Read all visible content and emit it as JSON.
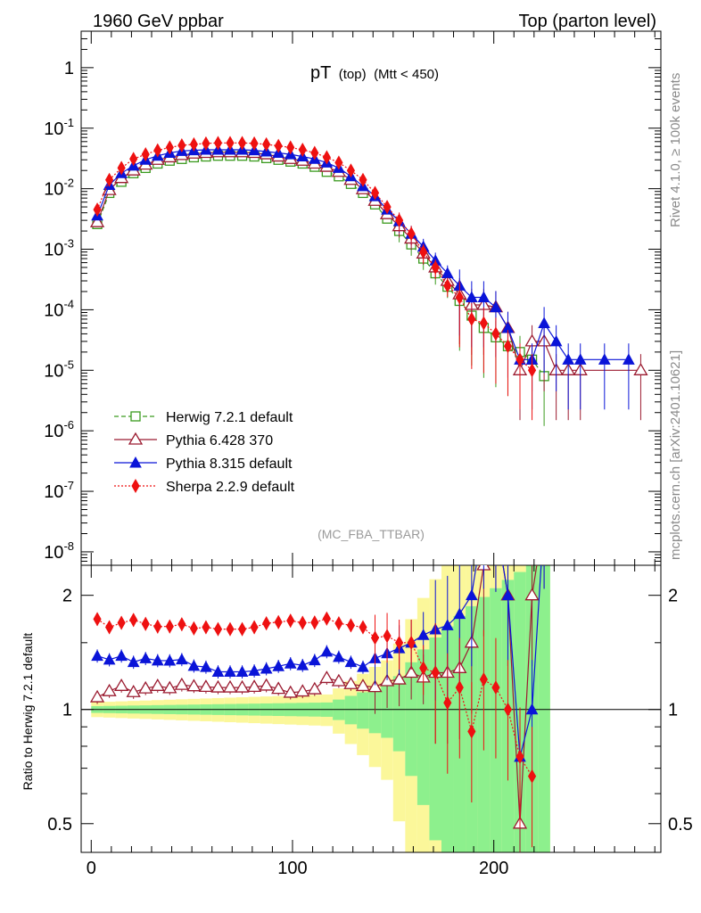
{
  "header": {
    "left": "1960 GeV ppbar",
    "right": "Top (parton level)"
  },
  "side_texts": {
    "rivet": "Rivet 4.1.0, ≥ 100k events",
    "mcplots": "mcplots.cern.ch [arXiv:2401.10621]"
  },
  "watermark": "(MC_FBA_TTBAR)",
  "main_title": {
    "pt": "pT",
    "top": "(top)",
    "cut": "(Mtt < 450)"
  },
  "ratio_ylabel": "Ratio to Herwig 7.2.1 default",
  "colors": {
    "herwig": "#3a9a1e",
    "pythia6": "#9b1b30",
    "pythia8": "#0a14d8",
    "sherpa": "#ee1111",
    "band_inner": "#8df08d",
    "band_outer": "#fbf79a"
  },
  "chart_data": {
    "type": "line",
    "x_axis": {
      "range": [
        -5,
        283
      ],
      "ticks": [
        0,
        100,
        200
      ],
      "labels": [
        "0",
        "100",
        "200"
      ]
    },
    "main_y_axis": {
      "scale": "log",
      "range": [
        6e-09,
        4.0
      ],
      "ticks": [
        1,
        0.1,
        0.01,
        0.001,
        0.0001,
        1e-05,
        1e-06,
        1e-07,
        1e-08
      ],
      "labels": [
        "1",
        "10^-1",
        "10^-2",
        "10^-3",
        "10^-4",
        "10^-5",
        "10^-6",
        "10^-7",
        "10^-8"
      ]
    },
    "ratio_y_axis": {
      "scale": "log",
      "range": [
        0.42,
        2.4
      ],
      "ticks": [
        0.5,
        1,
        2
      ],
      "labels": [
        "0.5",
        "1",
        "2"
      ],
      "reference": 1
    },
    "legend": [
      {
        "key": "herwig",
        "label": "Herwig 7.2.1 default"
      },
      {
        "key": "pythia6",
        "label": "Pythia 6.428 370"
      },
      {
        "key": "pythia8",
        "label": "Pythia 8.315 default"
      },
      {
        "key": "sherpa",
        "label": "Sherpa 2.2.9 default"
      }
    ],
    "series": [
      {
        "key": "herwig",
        "name": "Herwig 7.2.1 default",
        "x": [
          3,
          9,
          15,
          21,
          27,
          33,
          39,
          45,
          51,
          57,
          63,
          69,
          75,
          81,
          87,
          93,
          99,
          105,
          111,
          117,
          123,
          129,
          135,
          141,
          147,
          153,
          159,
          165,
          171,
          177,
          183,
          189,
          195,
          201,
          207,
          213,
          219,
          225
        ],
        "y": [
          0.0026,
          0.0085,
          0.013,
          0.018,
          0.022,
          0.026,
          0.029,
          0.031,
          0.033,
          0.034,
          0.035,
          0.035,
          0.035,
          0.034,
          0.032,
          0.03,
          0.028,
          0.026,
          0.023,
          0.019,
          0.016,
          0.012,
          0.0085,
          0.0055,
          0.0032,
          0.002,
          0.0012,
          0.0007,
          0.0004,
          0.00024,
          0.00014,
          8e-05,
          5e-05,
          3.5e-05,
          2.5e-05,
          2e-05,
          1.5e-05,
          8e-06
        ]
      },
      {
        "key": "pythia6",
        "name": "Pythia 6.428 370",
        "x": [
          3,
          9,
          15,
          21,
          27,
          33,
          39,
          45,
          51,
          57,
          63,
          69,
          75,
          81,
          87,
          93,
          99,
          105,
          111,
          117,
          123,
          129,
          135,
          141,
          147,
          153,
          159,
          165,
          171,
          177,
          183,
          189,
          195,
          201,
          207,
          213,
          219,
          225,
          231,
          237,
          243,
          273
        ],
        "y": [
          0.0028,
          0.0095,
          0.015,
          0.02,
          0.025,
          0.03,
          0.033,
          0.036,
          0.038,
          0.039,
          0.04,
          0.04,
          0.04,
          0.039,
          0.037,
          0.034,
          0.031,
          0.029,
          0.026,
          0.023,
          0.019,
          0.014,
          0.0098,
          0.0063,
          0.0038,
          0.0024,
          0.0015,
          0.00085,
          0.0005,
          0.0003,
          0.00018,
          0.00012,
          0.00012,
          0.00011,
          5e-05,
          1e-05,
          3e-05,
          3e-05,
          1e-05,
          1e-05,
          1e-05,
          1e-05
        ]
      },
      {
        "key": "pythia8",
        "name": "Pythia 8.315 default",
        "x": [
          3,
          9,
          15,
          21,
          27,
          33,
          39,
          45,
          51,
          57,
          63,
          69,
          75,
          81,
          87,
          93,
          99,
          105,
          111,
          117,
          123,
          129,
          135,
          141,
          147,
          153,
          159,
          165,
          171,
          177,
          183,
          189,
          195,
          201,
          207,
          213,
          219,
          225,
          231,
          237,
          243,
          255,
          267
        ],
        "y": [
          0.0036,
          0.0115,
          0.018,
          0.024,
          0.03,
          0.035,
          0.039,
          0.042,
          0.043,
          0.044,
          0.044,
          0.044,
          0.044,
          0.043,
          0.041,
          0.039,
          0.037,
          0.034,
          0.031,
          0.027,
          0.022,
          0.016,
          0.011,
          0.0075,
          0.0045,
          0.0029,
          0.0018,
          0.0011,
          0.00065,
          0.0004,
          0.00025,
          0.00016,
          0.00016,
          0.00011,
          5e-05,
          1.5e-05,
          1.5e-05,
          6e-05,
          3e-05,
          1.5e-05,
          1.5e-05,
          1.5e-05,
          1.5e-05
        ]
      },
      {
        "key": "sherpa",
        "name": "Sherpa 2.2.9 default",
        "x": [
          3,
          9,
          15,
          21,
          27,
          33,
          39,
          45,
          51,
          57,
          63,
          69,
          75,
          81,
          87,
          93,
          99,
          105,
          111,
          117,
          123,
          129,
          135,
          141,
          147,
          153,
          159,
          165,
          171,
          177,
          183,
          189,
          195,
          201,
          207,
          213,
          219
        ],
        "y": [
          0.0045,
          0.014,
          0.022,
          0.031,
          0.037,
          0.043,
          0.048,
          0.052,
          0.054,
          0.056,
          0.057,
          0.057,
          0.057,
          0.056,
          0.054,
          0.051,
          0.048,
          0.044,
          0.039,
          0.033,
          0.027,
          0.02,
          0.014,
          0.0085,
          0.005,
          0.003,
          0.0018,
          0.0009,
          0.0005,
          0.00025,
          0.00016,
          7e-05,
          6e-05,
          4e-05,
          2.5e-05,
          1.5e-05,
          1e-05
        ]
      }
    ]
  }
}
